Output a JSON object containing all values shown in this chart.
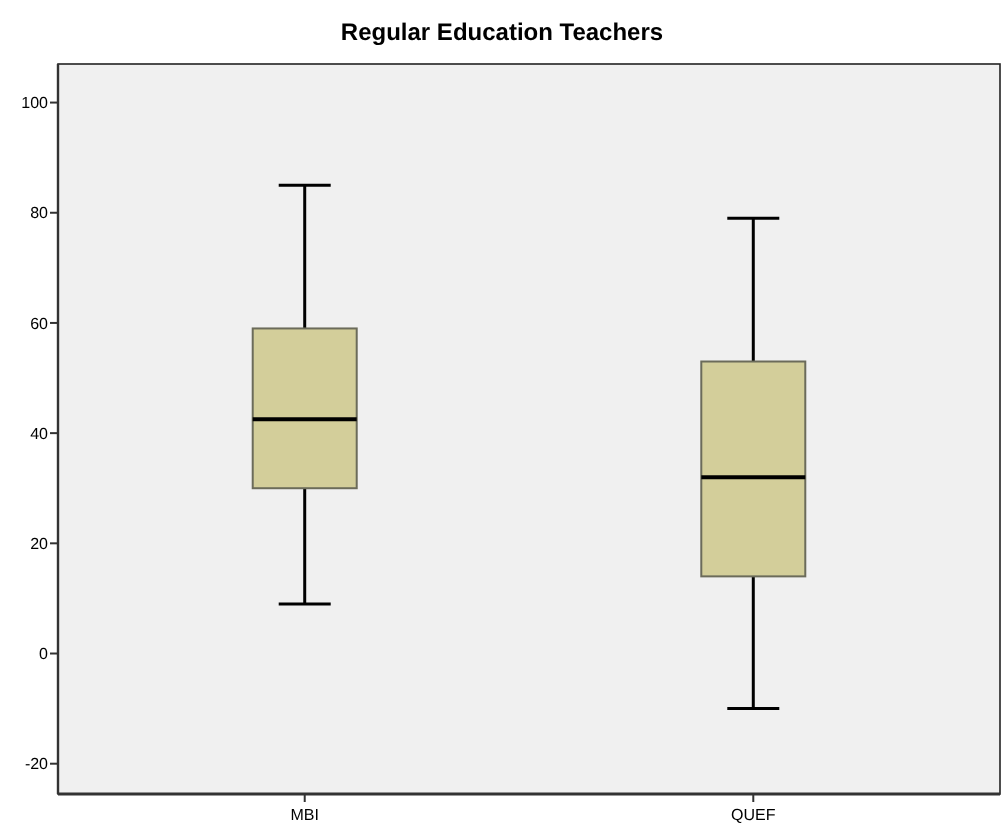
{
  "chart_data": {
    "type": "box",
    "title": "Regular Education Teachers",
    "categories": [
      "MBI",
      "QUEF"
    ],
    "boxes": [
      {
        "low": 9,
        "q1": 30,
        "median": 42.5,
        "q3": 59,
        "high": 85
      },
      {
        "low": -10,
        "q1": 14,
        "median": 32,
        "q3": 53,
        "high": 79
      }
    ],
    "color": "#d3ce9a",
    "ylim": [
      -25.5,
      107
    ],
    "yticks": [
      -20,
      0,
      20,
      40,
      60,
      80,
      100
    ],
    "grid": false
  }
}
